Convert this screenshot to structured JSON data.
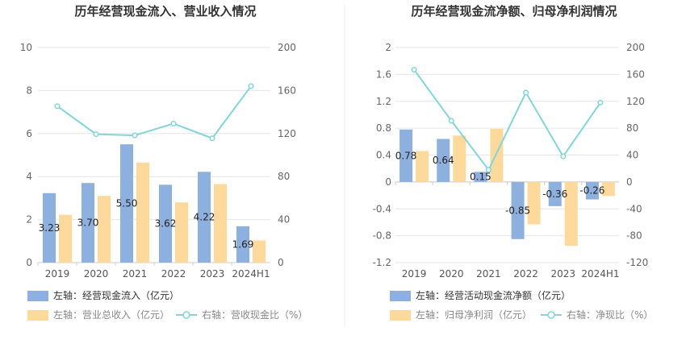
{
  "chart_data": [
    {
      "type": "bar+line",
      "title": "历年经营现金流入、营业收入情况",
      "categories": [
        "2019",
        "2020",
        "2021",
        "2022",
        "2023",
        "2024H1"
      ],
      "left_axis": {
        "min": 0,
        "max": 10,
        "ticks": [
          "0",
          "2",
          "4",
          "6",
          "8",
          "10"
        ]
      },
      "right_axis": {
        "min": 0,
        "max": 200,
        "ticks": [
          "0",
          "40",
          "80",
          "120",
          "160",
          "200"
        ]
      },
      "series": [
        {
          "name": "左轴：经营现金流入（亿元）",
          "kind": "bar",
          "axis": "left",
          "color": "#8eb0df",
          "values": [
            3.23,
            3.7,
            5.5,
            3.62,
            4.22,
            1.69
          ],
          "labels": [
            "3.23",
            "3.70",
            "5.50",
            "3.62",
            "4.22",
            "1.69"
          ]
        },
        {
          "name": "左轴：营业总收入（亿元）",
          "kind": "bar",
          "axis": "left",
          "color": "#fdd99c",
          "values": [
            2.22,
            3.1,
            4.65,
            2.8,
            3.65,
            1.03
          ]
        },
        {
          "name": "右轴：营收现金比（%）",
          "kind": "line",
          "axis": "right",
          "color": "#84d4d8",
          "values": [
            145.5,
            119.4,
            118.3,
            129.3,
            115.6,
            164.1
          ]
        }
      ]
    },
    {
      "type": "bar+line",
      "title": "历年经营现金流净额、归母净利润情况",
      "categories": [
        "2019",
        "2020",
        "2021",
        "2022",
        "2023",
        "2024H1"
      ],
      "left_axis": {
        "min": -1.2,
        "max": 2,
        "ticks": [
          "-1.2",
          "-0.8",
          "-0.4",
          "0",
          "0.4",
          "0.8",
          "1.2",
          "1.6",
          "2"
        ]
      },
      "right_axis": {
        "min": -120,
        "max": 200,
        "ticks": [
          "-120",
          "-80",
          "-40",
          "0",
          "40",
          "80",
          "120",
          "160",
          "200"
        ]
      },
      "series": [
        {
          "name": "左轴：经营活动现金流净额（亿元）",
          "kind": "bar",
          "axis": "left",
          "color": "#8eb0df",
          "values": [
            0.78,
            0.64,
            0.15,
            -0.85,
            -0.36,
            -0.26
          ],
          "labels": [
            "0.78",
            "0.64",
            "0.15",
            "-0.85",
            "-0.36",
            "-0.26"
          ]
        },
        {
          "name": "左轴：归母净利润（亿元）",
          "kind": "bar",
          "axis": "left",
          "color": "#fdd99c",
          "values": [
            0.46,
            0.69,
            0.79,
            -0.63,
            -0.95,
            -0.21
          ]
        },
        {
          "name": "右轴：净现比（%）",
          "kind": "line",
          "axis": "right",
          "color": "#84d4d8",
          "values": [
            167.0,
            91.0,
            18.0,
            133.0,
            38.0,
            118.0
          ]
        }
      ]
    }
  ]
}
